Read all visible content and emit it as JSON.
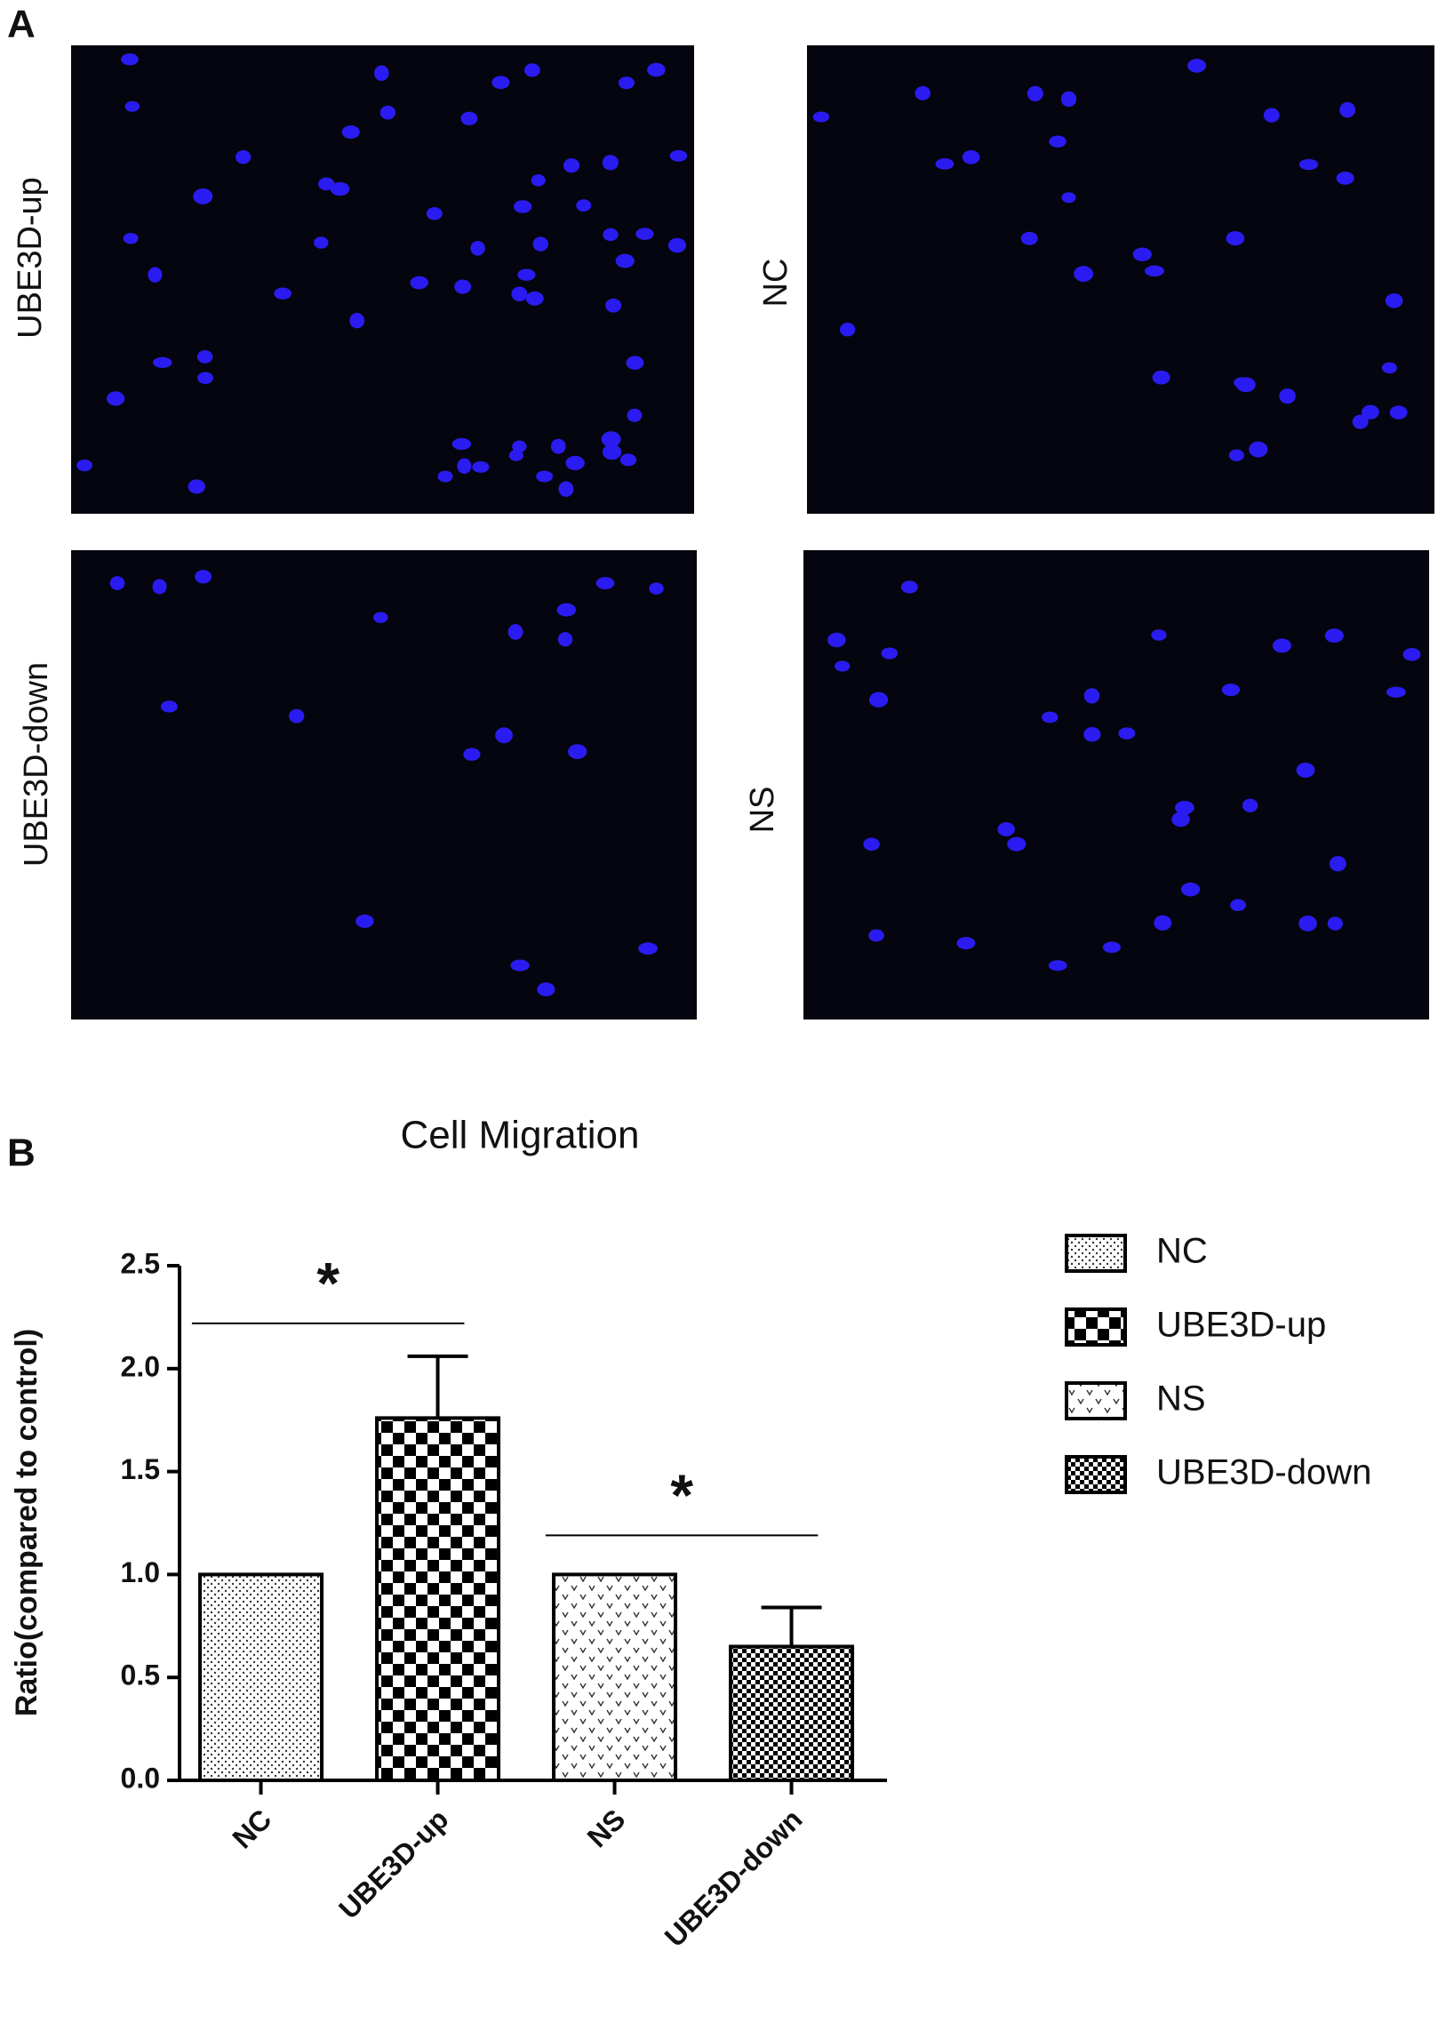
{
  "figure": {
    "panel_a": {
      "label": "A",
      "images": [
        "UBE3D-up",
        "NC",
        "UBE3D-down",
        "NS"
      ]
    }
  },
  "chart_data": {
    "type": "bar",
    "panel_label": "B",
    "title": "Cell Migration",
    "y_label": "Ratio(compared to control)",
    "categories": [
      "NC",
      "UBE3D-up",
      "NS",
      "UBE3D-down"
    ],
    "values": [
      1.0,
      1.76,
      1.0,
      0.65
    ],
    "errors": [
      null,
      0.3,
      null,
      0.19
    ],
    "fills": [
      "dots",
      "checker",
      "chevrons",
      "fine-checker"
    ],
    "ylim": [
      0,
      2.5
    ],
    "yticks": [
      {
        "value": 0,
        "label": "0.0"
      },
      0.5,
      {
        "value": 1,
        "label": "1.0"
      },
      1.5,
      {
        "value": 2,
        "label": "2.0"
      },
      2.5
    ],
    "annotations": [
      {
        "text": "*",
        "between": [
          0,
          1
        ],
        "y": 2.22
      },
      {
        "text": "*",
        "between": [
          2,
          3
        ],
        "y": 1.19
      }
    ],
    "legend": "right"
  }
}
